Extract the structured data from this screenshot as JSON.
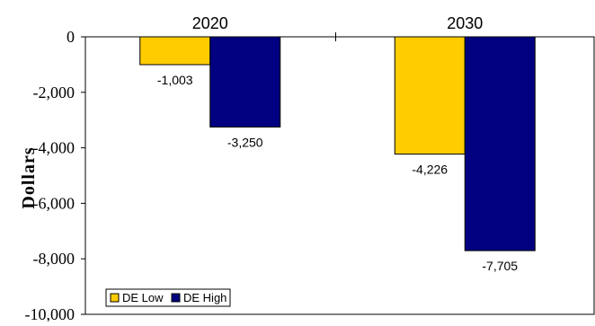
{
  "chart_data": {
    "type": "bar",
    "categories": [
      "2020",
      "2030"
    ],
    "series": [
      {
        "name": "DE Low",
        "values": [
          -1003,
          -4226
        ],
        "color": "#FFCC00",
        "labels": [
          "-1,003",
          "-4,226"
        ]
      },
      {
        "name": "DE High",
        "values": [
          -3250,
          -7705
        ],
        "color": "#000080",
        "labels": [
          "-3,250",
          "-7,705"
        ]
      }
    ],
    "title": "",
    "xlabel": "",
    "ylabel": "Dollars",
    "ylim": [
      -10000,
      0
    ],
    "yticks": [
      0,
      -2000,
      -4000,
      -6000,
      -8000,
      -10000
    ],
    "ytick_labels": [
      "0",
      "-2,000",
      "-4,000",
      "-6,000",
      "-8,000",
      "-10,000"
    ],
    "x_axis_position": "top",
    "grid": false,
    "legend_position": "bottom-left"
  }
}
